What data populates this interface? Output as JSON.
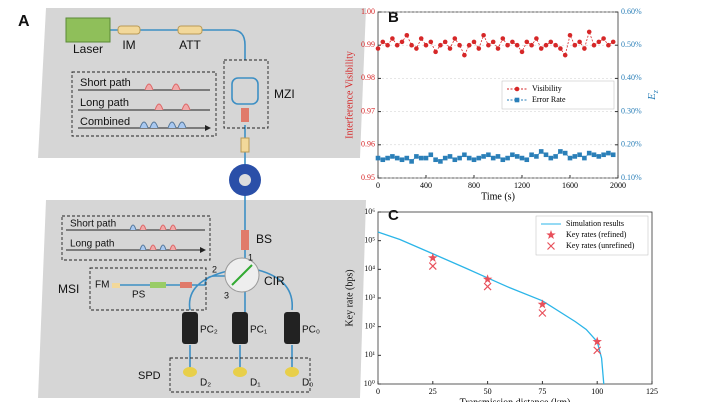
{
  "panels": {
    "a": "A",
    "b": "B",
    "c": "C"
  },
  "diagram": {
    "laser": "Laser",
    "im": "IM",
    "att": "ATT",
    "mzi": "MZI",
    "short_path": "Short path",
    "long_path": "Long path",
    "combined": "Combined",
    "short_path_2": "Short path",
    "long_path_2": "Long path",
    "bs": "BS",
    "cir": "CIR",
    "port1": "1",
    "port2": "2",
    "port3": "3",
    "msi": "MSI",
    "fm": "FM",
    "ps": "PS",
    "pc2": "PC₂",
    "pc1": "PC₁",
    "pc0": "PC₀",
    "spd": "SPD",
    "d2": "D₂",
    "d1": "D₁",
    "d0": "D₀"
  },
  "chart_data": [
    {
      "type": "line",
      "xlabel": "Time (s)",
      "ylabel": "Interference Visibility",
      "y2label": "E_z",
      "xlim": [
        0,
        2000
      ],
      "xticks": [
        0,
        400,
        800,
        1200,
        1600,
        2000
      ],
      "ylim": [
        0.95,
        1
      ],
      "yticks": [
        0.95,
        0.96,
        0.97,
        0.98,
        0.99,
        {
          "value": 1,
          "label": "1.00"
        }
      ],
      "y2lim": [
        0.1,
        0.6
      ],
      "y2ticks": [
        {
          "value": 0.1,
          "label": "0.10%"
        },
        {
          "value": 0.2,
          "label": "0.20%"
        },
        {
          "value": 0.3,
          "label": "0.30%"
        },
        {
          "value": 0.4,
          "label": "0.40%"
        },
        {
          "value": 0.5,
          "label": "0.50%"
        },
        {
          "value": 0.6,
          "label": "0.60%"
        }
      ],
      "ycolor": "#d62728",
      "y2color": "#2a7fb8",
      "grid": true,
      "legend": "center right",
      "x": [
        0,
        40,
        80,
        120,
        160,
        200,
        240,
        280,
        320,
        360,
        400,
        440,
        480,
        520,
        560,
        600,
        640,
        680,
        720,
        760,
        800,
        840,
        880,
        920,
        960,
        1000,
        1040,
        1080,
        1120,
        1160,
        1200,
        1240,
        1280,
        1320,
        1360,
        1400,
        1440,
        1480,
        1520,
        1560,
        1600,
        1640,
        1680,
        1720,
        1760,
        1800,
        1840,
        1880,
        1920,
        1960
      ],
      "series": [
        {
          "name": "Visibility",
          "color": "#d62728",
          "marker": "circle",
          "linestyle": "dashed",
          "values": [
            0.989,
            0.991,
            0.99,
            0.992,
            0.99,
            0.991,
            0.993,
            0.99,
            0.989,
            0.992,
            0.99,
            0.991,
            0.988,
            0.99,
            0.991,
            0.989,
            0.992,
            0.99,
            0.987,
            0.99,
            0.991,
            0.989,
            0.993,
            0.99,
            0.991,
            0.989,
            0.992,
            0.99,
            0.991,
            0.99,
            0.988,
            0.991,
            0.99,
            0.992,
            0.989,
            0.99,
            0.991,
            0.99,
            0.989,
            0.987,
            0.993,
            0.99,
            0.991,
            0.989,
            0.994,
            0.99,
            0.991,
            0.992,
            0.99,
            0.991
          ]
        },
        {
          "name": "Error Rate",
          "color": "#2a7fb8",
          "marker": "square",
          "linestyle": "dashed",
          "axis": "y2",
          "values": [
            0.16,
            0.155,
            0.16,
            0.165,
            0.16,
            0.155,
            0.16,
            0.15,
            0.165,
            0.16,
            0.16,
            0.17,
            0.155,
            0.15,
            0.16,
            0.165,
            0.155,
            0.16,
            0.17,
            0.16,
            0.155,
            0.16,
            0.165,
            0.17,
            0.16,
            0.165,
            0.155,
            0.16,
            0.17,
            0.165,
            0.16,
            0.155,
            0.17,
            0.165,
            0.18,
            0.17,
            0.16,
            0.165,
            0.18,
            0.175,
            0.16,
            0.165,
            0.17,
            0.16,
            0.175,
            0.17,
            0.165,
            0.17,
            0.175,
            0.17
          ]
        }
      ]
    },
    {
      "type": "line",
      "xlabel": "Transmission distance (km)",
      "ylabel": "Key rate (bps)",
      "yscale": "log",
      "xlim": [
        0,
        125
      ],
      "xticks": [
        0,
        25,
        50,
        75,
        100,
        125
      ],
      "ylim": [
        1,
        1000000
      ],
      "yticks": [
        {
          "value": 1,
          "label": "10⁰"
        },
        {
          "value": 10,
          "label": "10¹"
        },
        {
          "value": 100,
          "label": "10²"
        },
        {
          "value": 1000,
          "label": "10³"
        },
        {
          "value": 10000,
          "label": "10⁴"
        },
        {
          "value": 100000,
          "label": "10⁵"
        },
        {
          "value": 1000000,
          "label": "10⁶"
        }
      ],
      "legend": "upper right",
      "series": [
        {
          "name": "Simulation results",
          "color": "#2bb5e8",
          "marker": "none",
          "linestyle": "solid",
          "x": [
            0,
            10,
            25,
            40,
            50,
            60,
            75,
            90,
            95,
            100,
            102,
            103
          ],
          "values": [
            200000,
            110000,
            35000,
            11000,
            5000,
            2300,
            800,
            150,
            80,
            30,
            8,
            1
          ]
        },
        {
          "name": "Key rates (refined)",
          "color": "#e8505b",
          "marker": "star",
          "linestyle": "none",
          "x": [
            25,
            50,
            75,
            100
          ],
          "values": [
            25000,
            4500,
            600,
            30
          ]
        },
        {
          "name": "Key rates (unrefined)",
          "color": "#e8505b",
          "marker": "x",
          "linestyle": "none",
          "x": [
            25,
            50,
            75,
            100
          ],
          "values": [
            13000,
            2500,
            300,
            15
          ]
        }
      ]
    }
  ]
}
